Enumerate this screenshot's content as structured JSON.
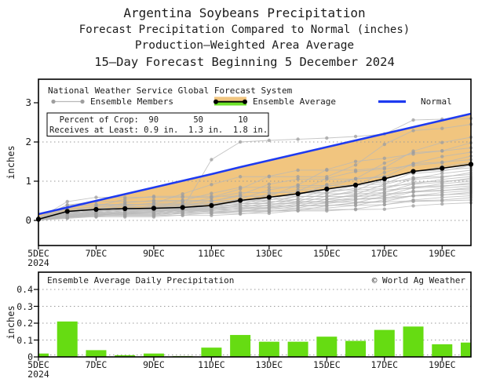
{
  "title": {
    "line1": "Argentina Soybeans Precipitation",
    "line2": "Forecast Precipitation Compared to Normal (inches)",
    "line3": "Production—Weighted Area Average",
    "line4": "15—Day Forecast Beginning 5 December 2024"
  },
  "cumulative_chart": {
    "header": "National Weather Service Global Forecast System",
    "legend": {
      "members_label": "Ensemble Members",
      "average_label": "Ensemble Average",
      "normal_label": "Normal"
    },
    "stats_box": {
      "row1": "  Percent of Crop:  90       50       10",
      "row2": "Receives at Least: 0.9 in.  1.3 in.  1.8 in."
    },
    "ylabel": "inches",
    "yticks": [
      "0",
      "1",
      "2",
      "3"
    ],
    "xticks": [
      "5DEC",
      "7DEC",
      "9DEC",
      "11DEC",
      "13DEC",
      "15DEC",
      "17DEC",
      "19DEC"
    ],
    "x_year": "2024"
  },
  "daily_chart": {
    "header": "Ensemble Average Daily Precipitation",
    "credit": "© World Ag Weather",
    "ylabel": "inches",
    "yticks": [
      "0",
      "0.1",
      "0.2",
      "0.3",
      "0.4"
    ],
    "xticks": [
      "5DEC",
      "7DEC",
      "9DEC",
      "11DEC",
      "13DEC",
      "15DEC",
      "17DEC",
      "19DEC"
    ],
    "x_year": "2024"
  },
  "colors": {
    "normal_blue": "#1e3af0",
    "average_black": "#000000",
    "member_gray": "#b8b8b8",
    "member_dot_gray": "#9e9e9e",
    "deficit_orange": "#f1c57f",
    "surplus_green": "#6ee32a",
    "bar_green": "#66dc12",
    "grid_gray": "#9a9a9a",
    "text": "#1b1b1b"
  },
  "chart_data": [
    {
      "type": "line",
      "title": "Forecast Cumulative Precipitation Compared to Normal (inches)",
      "x": [
        5,
        6,
        7,
        8,
        9,
        10,
        11,
        12,
        13,
        14,
        15,
        16,
        17,
        18,
        19,
        20
      ],
      "x_unit": "day of December 2024",
      "ylabel": "inches",
      "ylim": [
        -0.65,
        3.55
      ],
      "grid_values": [
        0,
        1,
        2
      ],
      "series": [
        {
          "name": "Normal",
          "color": "#1e3af0",
          "values": [
            0.16,
            0.33,
            0.5,
            0.67,
            0.84,
            1.01,
            1.18,
            1.36,
            1.53,
            1.7,
            1.87,
            2.04,
            2.21,
            2.38,
            2.55,
            2.72
          ]
        },
        {
          "name": "Ensemble Average",
          "color": "#000000",
          "values": [
            0.03,
            0.23,
            0.28,
            0.3,
            0.31,
            0.33,
            0.38,
            0.51,
            0.59,
            0.68,
            0.8,
            0.9,
            1.06,
            1.25,
            1.33,
            1.43
          ]
        }
      ],
      "ensemble_members": {
        "name": "Ensemble Members",
        "count": 30,
        "color": "#b8b8b8",
        "final_values": [
          0.45,
          0.52,
          0.58,
          0.63,
          0.68,
          0.72,
          0.76,
          0.8,
          0.84,
          0.88,
          0.92,
          0.96,
          1.0,
          1.04,
          1.08,
          1.12,
          1.17,
          1.22,
          1.28,
          1.34,
          1.4,
          1.47,
          1.55,
          1.64,
          1.74,
          1.85,
          1.98,
          2.12,
          2.45
        ],
        "highlight_member_values": [
          0.02,
          0.1,
          0.14,
          0.18,
          0.22,
          0.3,
          1.55,
          2.0,
          2.04,
          2.07,
          2.1,
          2.14,
          2.2,
          2.56,
          2.58,
          2.6
        ]
      },
      "deficit_fill_color": "#f1c57f",
      "percent_of_crop_receives_at_least": {
        "90": "0.9 in.",
        "50": "1.3 in.",
        "10": "1.8 in."
      }
    },
    {
      "type": "bar",
      "title": "Ensemble Average Daily Precipitation",
      "categories": [
        "5DEC",
        "6DEC",
        "7DEC",
        "8DEC",
        "9DEC",
        "10DEC",
        "11DEC",
        "12DEC",
        "13DEC",
        "14DEC",
        "15DEC",
        "16DEC",
        "17DEC",
        "18DEC",
        "19DEC",
        "20DEC"
      ],
      "values": [
        0.02,
        0.21,
        0.04,
        0.01,
        0.02,
        0.005,
        0.055,
        0.13,
        0.09,
        0.09,
        0.12,
        0.095,
        0.16,
        0.18,
        0.075,
        0.085
      ],
      "bar_color": "#66dc12",
      "ylabel": "inches",
      "ylim": [
        0,
        0.5
      ],
      "grid_values": [
        0.1,
        0.2,
        0.3,
        0.4
      ]
    }
  ]
}
